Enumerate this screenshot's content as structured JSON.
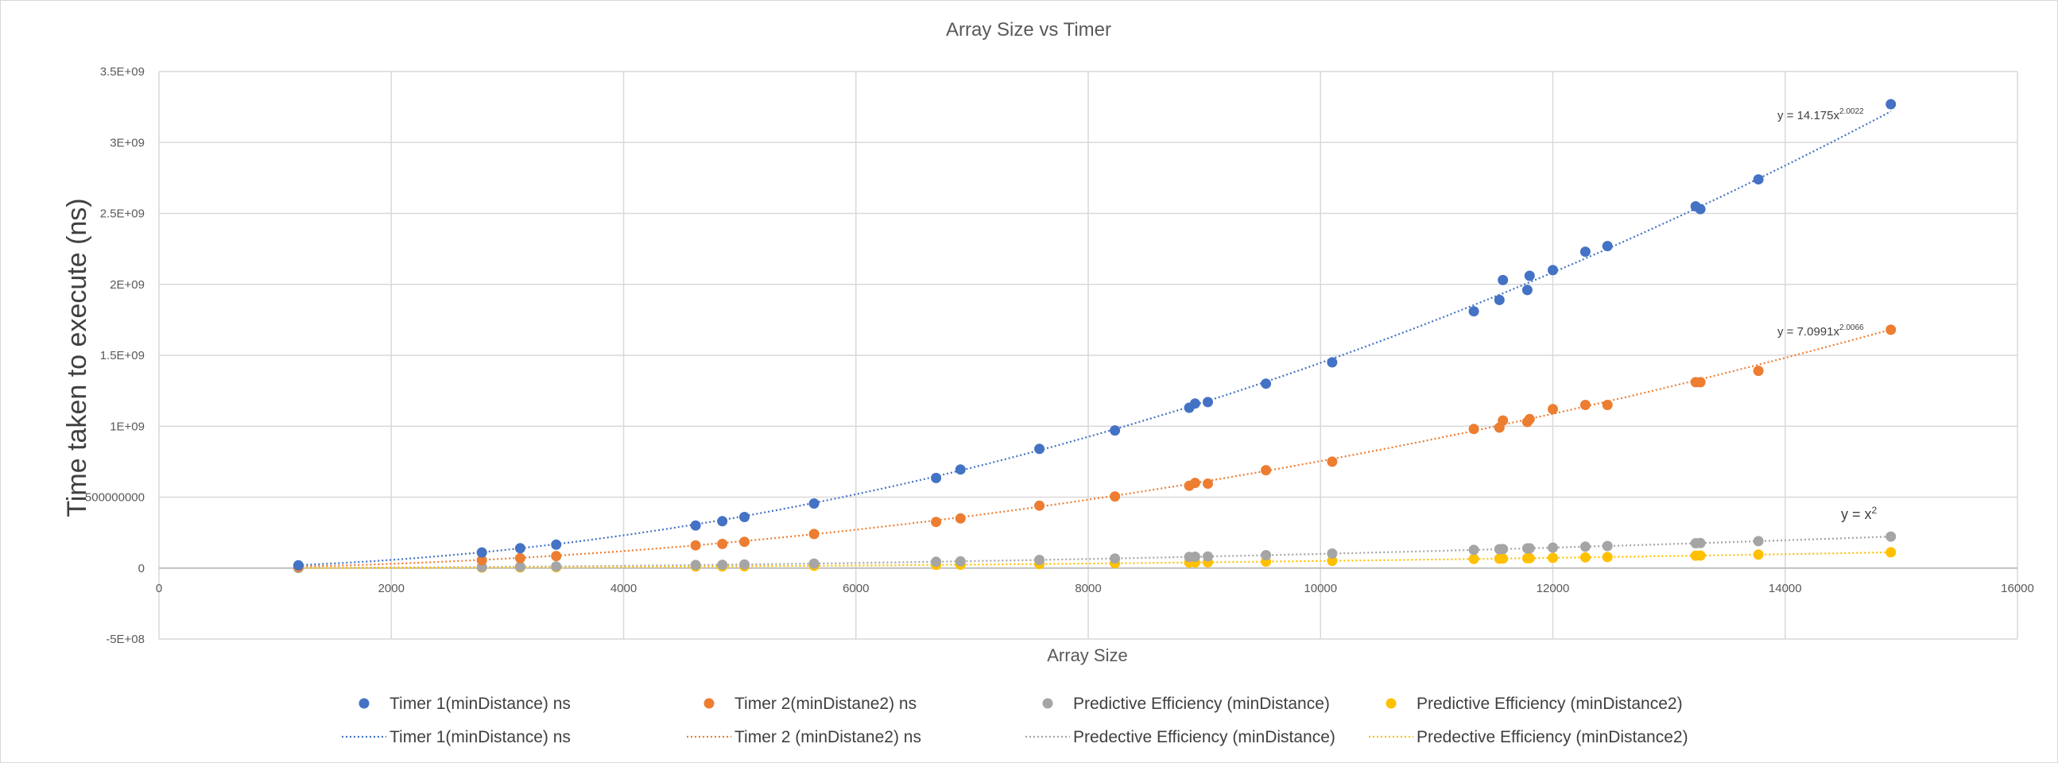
{
  "chart_data": {
    "type": "scatter",
    "title": "Array Size vs Timer",
    "xlabel": "Array Size",
    "ylabel": "Time taken to execute (ns)",
    "xlim": [
      0,
      16000
    ],
    "ylim": [
      -500000000,
      3500000000
    ],
    "grid": true,
    "legend_position": "bottom",
    "x_ticks": [
      0,
      2000,
      4000,
      6000,
      8000,
      10000,
      12000,
      14000,
      16000
    ],
    "x_tick_labels": [
      "0",
      "2000",
      "4000",
      "6000",
      "8000",
      "10000",
      "12000",
      "14000",
      "16000"
    ],
    "y_ticks": [
      -500000000,
      0,
      500000000,
      1000000000,
      1500000000,
      2000000000,
      2500000000,
      3000000000,
      3500000000
    ],
    "y_tick_labels": [
      "-5E+08",
      "0",
      "500000000",
      "1E+09",
      "1.5E+09",
      "2E+09",
      "2.5E+09",
      "3E+09",
      "3.5E+09"
    ],
    "x": [
      1200,
      2780,
      3110,
      3420,
      4620,
      4850,
      5040,
      5640,
      6690,
      6900,
      7580,
      8230,
      8870,
      8920,
      9030,
      9530,
      10100,
      11320,
      11540,
      11570,
      11780,
      11800,
      12000,
      12280,
      12470,
      13230,
      13270,
      13770,
      14910
    ],
    "series": [
      {
        "name": "Timer 1(minDistance) ns",
        "color": "#4472c4",
        "values": [
          20000000,
          110000000,
          140000000,
          165000000,
          300000000,
          330000000,
          360000000,
          455000000,
          635000000,
          695000000,
          840000000,
          970000000,
          1130000000,
          1160000000,
          1170000000,
          1300000000,
          1450000000,
          1810000000,
          1890000000,
          2030000000,
          1960000000,
          2060000000,
          2100000000,
          2230000000,
          2270000000,
          2550000000,
          2530000000,
          2740000000,
          3270000000
        ],
        "trendline": {
          "label": "Timer 1(minDistance) ns",
          "coef": 14.175,
          "exp": 2.0022,
          "equation": "y = 14.175x",
          "equation_exp": "2.0022"
        }
      },
      {
        "name": "Timer 2(minDistane2) ns",
        "color": "#ed7d31",
        "values": [
          10000000,
          55000000,
          70000000,
          85000000,
          160000000,
          170000000,
          185000000,
          240000000,
          325000000,
          350000000,
          440000000,
          505000000,
          580000000,
          600000000,
          595000000,
          690000000,
          750000000,
          980000000,
          990000000,
          1040000000,
          1030000000,
          1050000000,
          1120000000,
          1150000000,
          1150000000,
          1310000000,
          1310000000,
          1390000000,
          1680000000
        ],
        "trendline": {
          "label": "Timer 2 (minDistane2) ns",
          "coef": 7.0991,
          "exp": 2.0066,
          "equation": "y = 7.0991x",
          "equation_exp": "2.0066"
        }
      },
      {
        "name": "Predictive Efficiency (minDistance)",
        "color": "#a5a5a5",
        "values": [
          1440000,
          7728400,
          9672100,
          11696400,
          21344400,
          23522500,
          25401600,
          31809600,
          44756100,
          47610000,
          57456400,
          67732900,
          78676900,
          79566400,
          81540900,
          90820900,
          102010000,
          128142400,
          133171600,
          133864900,
          138768400,
          139240000,
          144000000,
          150798400,
          155500900,
          175032900,
          176092900,
          189612900,
          222308100
        ],
        "trendline": {
          "label": "Predective Efficiency (minDistance)",
          "coef": 1,
          "exp": 2,
          "equation": "y = x",
          "equation_exp": "2"
        }
      },
      {
        "name": "Predictive Efficiency (minDistance2)",
        "color": "#ffc000",
        "values": [
          720000,
          3864200,
          4836050,
          5848200,
          10672200,
          11761250,
          12700800,
          15904800,
          22378050,
          23805000,
          28728200,
          33866450,
          39338450,
          39783200,
          40770450,
          45410450,
          51005000,
          64071200,
          66585800,
          66932450,
          69384200,
          69620000,
          72000000,
          75399200,
          77750450,
          87516450,
          88046450,
          94806450,
          111154050
        ],
        "trendline": {
          "label": "Predective Efficiency (minDistance2)",
          "coef": 0.5,
          "exp": 2
        }
      }
    ]
  }
}
